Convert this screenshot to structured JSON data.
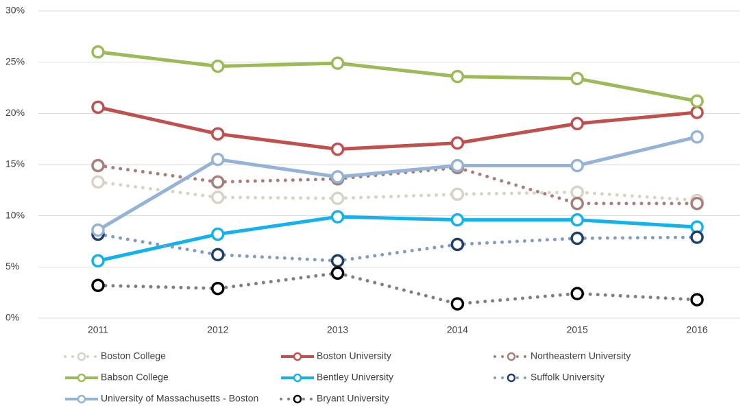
{
  "chart_data": {
    "type": "line",
    "categories": [
      "2011",
      "2012",
      "2013",
      "2014",
      "2015",
      "2016"
    ],
    "ylim": [
      0,
      30
    ],
    "yticks": [
      {
        "value": 0,
        "label": "0%"
      },
      {
        "value": 5,
        "label": "5%"
      },
      {
        "value": 10,
        "label": "10%"
      },
      {
        "value": 15,
        "label": "15%"
      },
      {
        "value": 20,
        "label": "20%"
      },
      {
        "value": 25,
        "label": "25%"
      },
      {
        "value": 30,
        "label": "30%"
      }
    ],
    "grid": true,
    "legend": "bottom",
    "series": [
      {
        "name": "Boston College",
        "color": "#d8d3c4",
        "marker_color": "#d8d3c4",
        "style": "dotted",
        "values": [
          13.3,
          11.8,
          11.7,
          12.1,
          12.3,
          11.5
        ]
      },
      {
        "name": "Boston University",
        "color": "#c0504d",
        "marker_color": "#c0504d",
        "style": "solid",
        "values": [
          20.6,
          18.0,
          16.5,
          17.1,
          19.0,
          20.1
        ]
      },
      {
        "name": "Northeastern University",
        "color": "#a97d78",
        "marker_color": "#a97d78",
        "style": "dotted",
        "values": [
          14.9,
          13.3,
          13.6,
          14.7,
          11.2,
          11.2
        ]
      },
      {
        "name": "Babson College",
        "color": "#9bbb59",
        "marker_color": "#9bbb59",
        "style": "solid",
        "values": [
          26.0,
          24.6,
          24.9,
          23.6,
          23.4,
          21.2
        ]
      },
      {
        "name": "Bentley University",
        "color": "#12b2ef",
        "marker_color": "#12b2ef",
        "style": "solid",
        "values": [
          5.6,
          8.2,
          9.9,
          9.6,
          9.6,
          8.9
        ]
      },
      {
        "name": "Suffolk University",
        "color": "#7f9cc4",
        "marker_color": "#203e6a",
        "style": "dotted",
        "values": [
          8.2,
          6.2,
          5.6,
          7.2,
          7.8,
          7.9
        ]
      },
      {
        "name": "University of Massachusetts - Boston",
        "color": "#95b3d7",
        "marker_color": "#95b3d7",
        "style": "solid",
        "values": [
          8.6,
          15.5,
          13.8,
          14.9,
          14.9,
          17.7
        ]
      },
      {
        "name": "Bryant University",
        "color": "#7f7f7f",
        "marker_color": "#000000",
        "style": "dotted",
        "values": [
          3.2,
          2.9,
          4.4,
          1.4,
          2.4,
          1.8
        ]
      }
    ]
  }
}
